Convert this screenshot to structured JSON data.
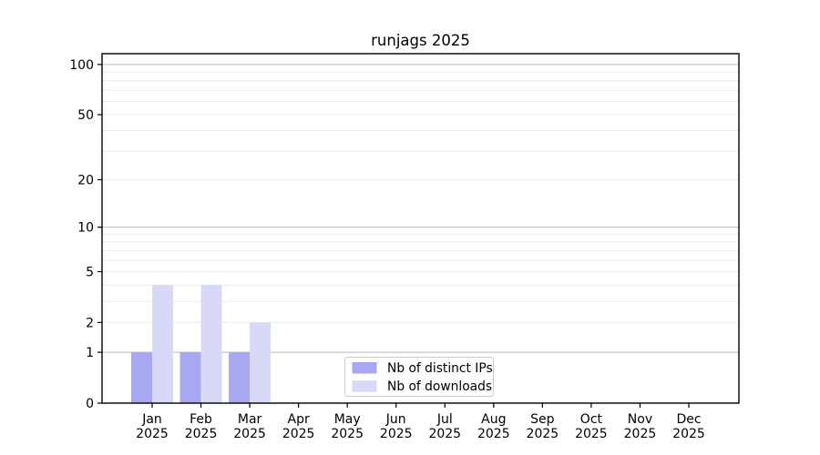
{
  "figure": {
    "background": "#ffffff"
  },
  "chart_data": {
    "type": "bar",
    "title": "runjags 2025",
    "categories": [
      "Jan",
      "Feb",
      "Mar",
      "Apr",
      "May",
      "Jun",
      "Jul",
      "Aug",
      "Sep",
      "Oct",
      "Nov",
      "Dec"
    ],
    "x_year_label": "2025",
    "series": [
      {
        "name": "Nb of distinct IPs",
        "color": "#a8a8f2",
        "values": [
          1,
          1,
          1,
          0,
          0,
          0,
          0,
          0,
          0,
          0,
          0,
          0
        ]
      },
      {
        "name": "Nb of downloads",
        "color": "#d8d8f7",
        "values": [
          4,
          4,
          2,
          0,
          0,
          0,
          0,
          0,
          0,
          0,
          0,
          0
        ]
      }
    ],
    "yscale": "log1p",
    "ylim": [
      0,
      116
    ],
    "ytick_values": [
      0,
      1,
      2,
      5,
      10,
      20,
      50,
      100
    ],
    "major_gridlines": [
      1,
      10,
      100
    ],
    "minor_gridlines": [
      2,
      3,
      4,
      5,
      6,
      7,
      8,
      9,
      20,
      30,
      40,
      50,
      60,
      70,
      80,
      90
    ],
    "grid": true,
    "legend_position": "lower center",
    "xlabel": "",
    "ylabel": ""
  },
  "colors": {
    "axis_frame": "#000000",
    "major_grid": "#bbbbbb",
    "minor_grid": "#ececec",
    "tick_text": "#000000",
    "title_text": "#000000",
    "legend_border": "#cccccc",
    "legend_bg": "#ffffff"
  }
}
